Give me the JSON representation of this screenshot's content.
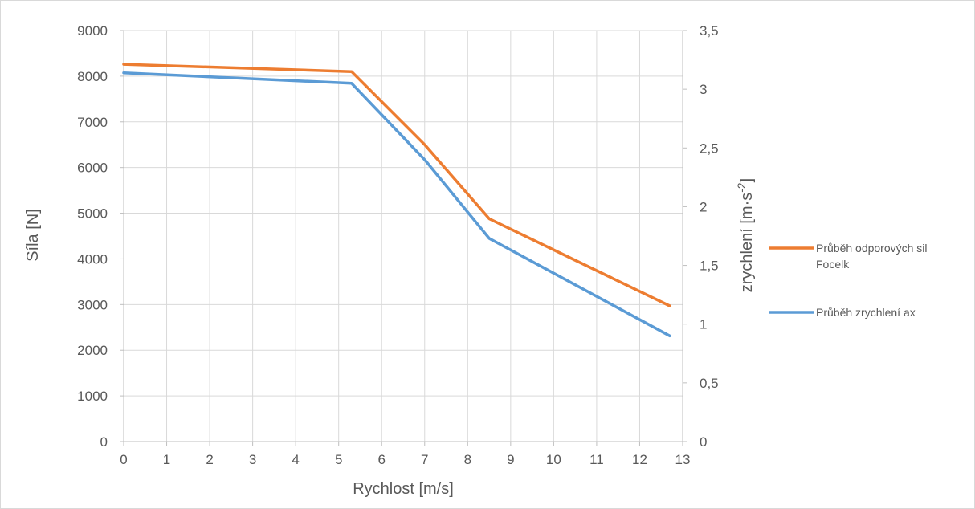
{
  "chart_data": {
    "type": "line",
    "title": "",
    "xlabel": "Rychlost [m/s]",
    "ylabel_left": "Síla [N]",
    "ylabel_right": "zrychlení [m·s-2]",
    "xlim": [
      0,
      13
    ],
    "ylim_left": [
      0,
      9000
    ],
    "ylim_right": [
      0,
      3.5
    ],
    "x_ticks": [
      "0",
      "1",
      "2",
      "3",
      "4",
      "5",
      "6",
      "7",
      "8",
      "9",
      "10",
      "11",
      "12",
      "13"
    ],
    "y_left_ticks": [
      "0",
      "1000",
      "2000",
      "3000",
      "4000",
      "5000",
      "6000",
      "7000",
      "8000",
      "9000"
    ],
    "y_right_ticks": [
      "0",
      "0,5",
      "1",
      "1,5",
      "2",
      "2,5",
      "3",
      "3,5"
    ],
    "grid": true,
    "legend_position": "right",
    "series": [
      {
        "name": "Průběh odporových sil Focelk",
        "axis": "left",
        "color": "#ED7D31",
        "x": [
          0,
          5.3,
          7.0,
          8.5,
          12.7
        ],
        "y": [
          8260,
          8100,
          6500,
          4880,
          2970
        ]
      },
      {
        "name": "Průběh zrychlení ax",
        "axis": "right",
        "color": "#5B9BD5",
        "x": [
          0,
          5.3,
          7.0,
          8.5,
          12.7
        ],
        "y": [
          3.14,
          3.05,
          2.4,
          1.73,
          0.9
        ]
      }
    ]
  }
}
